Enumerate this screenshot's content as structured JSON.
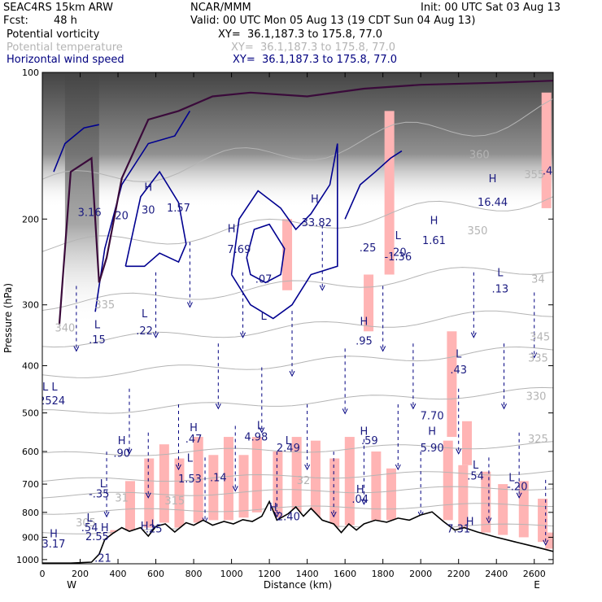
{
  "header": {
    "model": "SEAC4RS 15km ARW",
    "center": "NCAR/MMM",
    "init": "Init: 00 UTC Sat 03 Aug 13",
    "fcst_label": "Fcst:",
    "fcst_value": "48 h",
    "valid": "Valid: 00 UTC Mon 05 Aug 13 (19 CDT Sun 04 Aug 13)",
    "fields": [
      {
        "name": "Potential vorticity",
        "xy": "XY=  36.1,187.3 to 175.8, 77.0",
        "color": "#000000"
      },
      {
        "name": "Potential temperature",
        "xy": "XY=  36.1,187.3 to 175.8, 77.0",
        "color": "#b4b4b4"
      },
      {
        "name": "Horizontal wind speed",
        "xy": "XY=  36.1,187.3 to 175.8, 77.0",
        "color": "#000080"
      }
    ]
  },
  "chart_data": {
    "type": "cross-section",
    "xlabel": "Distance (km)",
    "ylabel": "Pressure (hPa)",
    "xlim": [
      0,
      2700
    ],
    "ylim": [
      1020,
      100
    ],
    "y_scale": "log",
    "x_ticks": [
      "0",
      "200",
      "400",
      "600",
      "800",
      "1000",
      "1200",
      "1400",
      "1600",
      "1800",
      "2000",
      "2200",
      "2400",
      "2600"
    ],
    "y_ticks": [
      "100",
      "200",
      "300",
      "400",
      "500",
      "600",
      "700",
      "800",
      "900",
      "1000"
    ],
    "x_end_labels": {
      "left": "W",
      "right": "E"
    },
    "terrain_color": "#ffffff",
    "pv_shading_color": "#ffb4b4",
    "theta_contour_color": "#b4b4b4",
    "wind_contour_color": "#000090",
    "terrain": [
      {
        "x": 0,
        "p": 1017
      },
      {
        "x": 150,
        "p": 1017
      },
      {
        "x": 260,
        "p": 1012
      },
      {
        "x": 300,
        "p": 975
      },
      {
        "x": 330,
        "p": 910
      },
      {
        "x": 370,
        "p": 885
      },
      {
        "x": 420,
        "p": 860
      },
      {
        "x": 460,
        "p": 875
      },
      {
        "x": 520,
        "p": 860
      },
      {
        "x": 560,
        "p": 895
      },
      {
        "x": 600,
        "p": 855
      },
      {
        "x": 650,
        "p": 845
      },
      {
        "x": 700,
        "p": 878
      },
      {
        "x": 760,
        "p": 840
      },
      {
        "x": 800,
        "p": 850
      },
      {
        "x": 850,
        "p": 830
      },
      {
        "x": 900,
        "p": 850
      },
      {
        "x": 960,
        "p": 835
      },
      {
        "x": 1010,
        "p": 845
      },
      {
        "x": 1060,
        "p": 828
      },
      {
        "x": 1110,
        "p": 835
      },
      {
        "x": 1160,
        "p": 815
      },
      {
        "x": 1200,
        "p": 760
      },
      {
        "x": 1240,
        "p": 830
      },
      {
        "x": 1300,
        "p": 805
      },
      {
        "x": 1340,
        "p": 780
      },
      {
        "x": 1380,
        "p": 815
      },
      {
        "x": 1420,
        "p": 785
      },
      {
        "x": 1480,
        "p": 830
      },
      {
        "x": 1540,
        "p": 845
      },
      {
        "x": 1580,
        "p": 880
      },
      {
        "x": 1620,
        "p": 845
      },
      {
        "x": 1660,
        "p": 870
      },
      {
        "x": 1700,
        "p": 845
      },
      {
        "x": 1760,
        "p": 830
      },
      {
        "x": 1820,
        "p": 838
      },
      {
        "x": 1880,
        "p": 822
      },
      {
        "x": 1940,
        "p": 830
      },
      {
        "x": 2000,
        "p": 810
      },
      {
        "x": 2060,
        "p": 798
      },
      {
        "x": 2120,
        "p": 835
      },
      {
        "x": 2180,
        "p": 870
      },
      {
        "x": 2230,
        "p": 860
      },
      {
        "x": 2300,
        "p": 878
      },
      {
        "x": 2400,
        "p": 900
      },
      {
        "x": 2500,
        "p": 920
      },
      {
        "x": 2600,
        "p": 940
      },
      {
        "x": 2700,
        "p": 962
      }
    ],
    "theta_levels": [
      305,
      310,
      315,
      320,
      325,
      330,
      335,
      340,
      345,
      350,
      360
    ],
    "theta_labels": [
      {
        "x": 230,
        "p": 855,
        "text": "305"
      },
      {
        "x": 420,
        "p": 760,
        "text": "31"
      },
      {
        "x": 700,
        "p": 770,
        "text": "315"
      },
      {
        "x": 1380,
        "p": 700,
        "text": "32"
      },
      {
        "x": 2620,
        "p": 575,
        "text": "325"
      },
      {
        "x": 2610,
        "p": 470,
        "text": "330"
      },
      {
        "x": 2620,
        "p": 392,
        "text": "335"
      },
      {
        "x": 2630,
        "p": 355,
        "text": "345"
      },
      {
        "x": 2620,
        "p": 270,
        "text": "34"
      },
      {
        "x": 2300,
        "p": 215,
        "text": "350"
      },
      {
        "x": 2310,
        "p": 150,
        "text": "360"
      },
      {
        "x": 330,
        "p": 305,
        "text": "335"
      },
      {
        "x": 120,
        "p": 340,
        "text": "340"
      },
      {
        "x": 2600,
        "p": 165,
        "text": "355"
      }
    ],
    "extrema": [
      {
        "x": 60,
        "p": 900,
        "text": "H"
      },
      {
        "x": 60,
        "p": 945,
        "text": "3.17"
      },
      {
        "x": 250,
        "p": 835,
        "text": "L"
      },
      {
        "x": 250,
        "p": 875,
        "text": ".54"
      },
      {
        "x": 320,
        "p": 1010,
        "text": ".21"
      },
      {
        "x": 330,
        "p": 875,
        "text": "H"
      },
      {
        "x": 290,
        "p": 912,
        "text": "2.55"
      },
      {
        "x": 590,
        "p": 860,
        "text": "L"
      },
      {
        "x": 540,
        "p": 868,
        "text": "H"
      },
      {
        "x": 590,
        "p": 880,
        "text": ".25"
      },
      {
        "x": 320,
        "p": 710,
        "text": "L"
      },
      {
        "x": 300,
        "p": 745,
        "text": "-.35"
      },
      {
        "x": 420,
        "p": 580,
        "text": "H"
      },
      {
        "x": 420,
        "p": 615,
        "text": ".90"
      },
      {
        "x": 800,
        "p": 545,
        "text": "H"
      },
      {
        "x": 800,
        "p": 575,
        "text": ".47"
      },
      {
        "x": 780,
        "p": 630,
        "text": "L"
      },
      {
        "x": 780,
        "p": 695,
        "text": "1.53"
      },
      {
        "x": 930,
        "p": 690,
        "text": ".14"
      },
      {
        "x": 1150,
        "p": 540,
        "text": "L"
      },
      {
        "x": 1130,
        "p": 570,
        "text": "4.98"
      },
      {
        "x": 1300,
        "p": 580,
        "text": "L"
      },
      {
        "x": 1300,
        "p": 600,
        "text": "2.49"
      },
      {
        "x": 1220,
        "p": 795,
        "text": "H"
      },
      {
        "x": 1300,
        "p": 830,
        "text": "2.40"
      },
      {
        "x": 1700,
        "p": 555,
        "text": "H"
      },
      {
        "x": 1730,
        "p": 580,
        "text": ".59"
      },
      {
        "x": 1680,
        "p": 730,
        "text": "H"
      },
      {
        "x": 1680,
        "p": 765,
        "text": ".04"
      },
      {
        "x": 2060,
        "p": 555,
        "text": "H"
      },
      {
        "x": 2060,
        "p": 600,
        "text": "5.90"
      },
      {
        "x": 2060,
        "p": 515,
        "text": "7.70"
      },
      {
        "x": 2200,
        "p": 385,
        "text": "L"
      },
      {
        "x": 2200,
        "p": 415,
        "text": ".43"
      },
      {
        "x": 2290,
        "p": 650,
        "text": "L"
      },
      {
        "x": 2290,
        "p": 685,
        "text": ".54"
      },
      {
        "x": 2480,
        "p": 690,
        "text": "L"
      },
      {
        "x": 2510,
        "p": 720,
        "text": "-.20"
      },
      {
        "x": 2260,
        "p": 850,
        "text": "H"
      },
      {
        "x": 2200,
        "p": 880,
        "text": "7.31"
      },
      {
        "x": 40,
        "p": 450,
        "text": "L  L"
      },
      {
        "x": 50,
        "p": 480,
        "text": "2524"
      },
      {
        "x": 290,
        "p": 335,
        "text": "L"
      },
      {
        "x": 290,
        "p": 360,
        "text": ".15"
      },
      {
        "x": 540,
        "p": 318,
        "text": "L"
      },
      {
        "x": 540,
        "p": 345,
        "text": ".22"
      },
      {
        "x": 1170,
        "p": 322,
        "text": "L"
      },
      {
        "x": 1700,
        "p": 330,
        "text": "H"
      },
      {
        "x": 1700,
        "p": 362,
        "text": ".95"
      },
      {
        "x": 2420,
        "p": 262,
        "text": "L"
      },
      {
        "x": 2420,
        "p": 283,
        "text": ".13"
      },
      {
        "x": 1170,
        "p": 270,
        "text": ".07"
      },
      {
        "x": 560,
        "p": 175,
        "text": "H"
      },
      {
        "x": 560,
        "p": 195,
        "text": "30"
      },
      {
        "x": 720,
        "p": 193,
        "text": "1.57"
      },
      {
        "x": 1000,
        "p": 213,
        "text": "H"
      },
      {
        "x": 1040,
        "p": 235,
        "text": "7.69"
      },
      {
        "x": 1440,
        "p": 185,
        "text": "H"
      },
      {
        "x": 1450,
        "p": 207,
        "text": "33.82"
      },
      {
        "x": 1720,
        "p": 233,
        "text": ".25"
      },
      {
        "x": 1880,
        "p": 220,
        "text": "L"
      },
      {
        "x": 1880,
        "p": 238,
        "text": ".20"
      },
      {
        "x": 1880,
        "p": 243,
        "text": "-1.36"
      },
      {
        "x": 2070,
        "p": 205,
        "text": "H"
      },
      {
        "x": 2070,
        "p": 225,
        "text": "1.61"
      },
      {
        "x": 2380,
        "p": 168,
        "text": "H"
      },
      {
        "x": 2380,
        "p": 188,
        "text": "16.44"
      },
      {
        "x": 250,
        "p": 197,
        "text": "3.16"
      },
      {
        "x": 420,
        "p": 200,
        "text": "20"
      },
      {
        "x": 2670,
        "p": 162,
        "text": ".4"
      }
    ],
    "pv_bands": [
      {
        "x": 380,
        "p1": 870,
        "p2": 1000
      },
      {
        "x": 460,
        "p1": 690,
        "p2": 870
      },
      {
        "x": 560,
        "p1": 620,
        "p2": 860
      },
      {
        "x": 640,
        "p1": 580,
        "p2": 840
      },
      {
        "x": 720,
        "p1": 620,
        "p2": 860
      },
      {
        "x": 820,
        "p1": 560,
        "p2": 840
      },
      {
        "x": 900,
        "p1": 610,
        "p2": 830
      },
      {
        "x": 980,
        "p1": 560,
        "p2": 830
      },
      {
        "x": 1060,
        "p1": 610,
        "p2": 820
      },
      {
        "x": 1130,
        "p1": 560,
        "p2": 800
      },
      {
        "x": 1240,
        "p1": 600,
        "p2": 820
      },
      {
        "x": 1340,
        "p1": 560,
        "p2": 800
      },
      {
        "x": 1440,
        "p1": 570,
        "p2": 820
      },
      {
        "x": 1540,
        "p1": 620,
        "p2": 860
      },
      {
        "x": 1620,
        "p1": 560,
        "p2": 850
      },
      {
        "x": 1760,
        "p1": 600,
        "p2": 830
      },
      {
        "x": 1840,
        "p1": 650,
        "p2": 830
      },
      {
        "x": 2140,
        "p1": 570,
        "p2": 830
      },
      {
        "x": 2220,
        "p1": 640,
        "p2": 860
      },
      {
        "x": 2340,
        "p1": 660,
        "p2": 880
      },
      {
        "x": 2430,
        "p1": 700,
        "p2": 890
      },
      {
        "x": 2540,
        "p1": 690,
        "p2": 900
      },
      {
        "x": 2640,
        "p1": 750,
        "p2": 920
      },
      {
        "x": 2680,
        "p1": 880,
        "p2": 950
      },
      {
        "x": 1720,
        "p1": 260,
        "p2": 340
      },
      {
        "x": 1830,
        "p1": 120,
        "p2": 260
      },
      {
        "x": 2160,
        "p1": 340,
        "p2": 560
      },
      {
        "x": 2660,
        "p1": 110,
        "p2": 190
      },
      {
        "x": 1290,
        "p1": 200,
        "p2": 280
      },
      {
        "x": 2240,
        "p1": 520,
        "p2": 640
      }
    ],
    "wind_vectors": [
      {
        "x": 180,
        "p": 320
      },
      {
        "x": 340,
        "p": 700
      },
      {
        "x": 460,
        "p": 520
      },
      {
        "x": 560,
        "p": 640
      },
      {
        "x": 600,
        "p": 300
      },
      {
        "x": 720,
        "p": 560
      },
      {
        "x": 780,
        "p": 260
      },
      {
        "x": 860,
        "p": 720
      },
      {
        "x": 930,
        "p": 420
      },
      {
        "x": 1020,
        "p": 620
      },
      {
        "x": 1060,
        "p": 300
      },
      {
        "x": 1160,
        "p": 470
      },
      {
        "x": 1240,
        "p": 700
      },
      {
        "x": 1320,
        "p": 360
      },
      {
        "x": 1400,
        "p": 560
      },
      {
        "x": 1480,
        "p": 240
      },
      {
        "x": 1540,
        "p": 700
      },
      {
        "x": 1600,
        "p": 430
      },
      {
        "x": 1700,
        "p": 660
      },
      {
        "x": 1800,
        "p": 320
      },
      {
        "x": 1880,
        "p": 560
      },
      {
        "x": 1960,
        "p": 420
      },
      {
        "x": 2000,
        "p": 700
      },
      {
        "x": 2200,
        "p": 520
      },
      {
        "x": 2280,
        "p": 300
      },
      {
        "x": 2360,
        "p": 720
      },
      {
        "x": 2440,
        "p": 420
      },
      {
        "x": 2520,
        "p": 640
      },
      {
        "x": 2600,
        "p": 330
      },
      {
        "x": 2660,
        "p": 800
      }
    ],
    "wind_contours": [
      {
        "points": [
          [
            280,
            310
          ],
          [
            330,
            230
          ],
          [
            420,
            170
          ],
          [
            560,
            140
          ],
          [
            700,
            135
          ],
          [
            780,
            120
          ]
        ]
      },
      {
        "points": [
          [
            440,
            250
          ],
          [
            520,
            180
          ],
          [
            620,
            160
          ],
          [
            720,
            185
          ],
          [
            760,
            225
          ],
          [
            720,
            245
          ],
          [
            620,
            235
          ],
          [
            540,
            250
          ],
          [
            440,
            250
          ]
        ]
      },
      {
        "points": [
          [
            1000,
            260
          ],
          [
            1040,
            200
          ],
          [
            1140,
            175
          ],
          [
            1260,
            190
          ],
          [
            1340,
            210
          ],
          [
            1420,
            195
          ],
          [
            1520,
            170
          ],
          [
            1560,
            140
          ],
          [
            1560,
            250
          ],
          [
            1420,
            260
          ],
          [
            1320,
            300
          ],
          [
            1220,
            320
          ],
          [
            1100,
            300
          ],
          [
            1000,
            260
          ]
        ]
      },
      {
        "points": [
          [
            1080,
            240
          ],
          [
            1120,
            210
          ],
          [
            1200,
            205
          ],
          [
            1280,
            230
          ],
          [
            1260,
            260
          ],
          [
            1180,
            270
          ],
          [
            1100,
            260
          ],
          [
            1080,
            240
          ]
        ]
      },
      {
        "points": [
          [
            1600,
            200
          ],
          [
            1680,
            170
          ],
          [
            1760,
            160
          ],
          [
            1840,
            150
          ],
          [
            1900,
            145
          ]
        ]
      },
      {
        "points": [
          [
            60,
            160
          ],
          [
            120,
            140
          ],
          [
            220,
            130
          ],
          [
            300,
            128
          ]
        ]
      }
    ]
  }
}
